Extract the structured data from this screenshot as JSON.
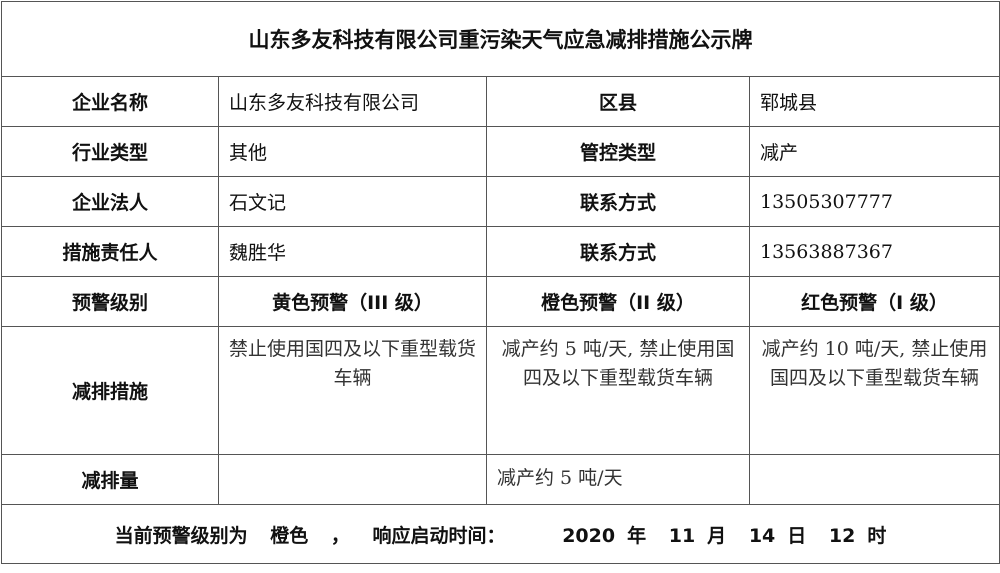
{
  "title": "山东多友科技有限公司重污染天气应急减排措施公示牌",
  "rows": [
    {
      "label1": "企业名称",
      "value1": "山东多友科技有限公司",
      "label2": "区县",
      "value2": "郓城县"
    },
    {
      "label1": "行业类型",
      "value1": "其他",
      "label2": "管控类型",
      "value2": "减产"
    },
    {
      "label1": "企业法人",
      "value1": "石文记",
      "label2": "联系方式",
      "value2": "13505307777"
    },
    {
      "label1": "措施责任人",
      "value1": "魏胜华",
      "label2": "联系方式",
      "value2": "13563887367"
    }
  ],
  "warning": {
    "label": "预警级别",
    "levels": [
      "黄色预警（III 级）",
      "橙色预警（II 级）",
      "红色预警（I 级）"
    ]
  },
  "measures": {
    "label": "减排措施",
    "values": [
      "禁止使用国四及以下重型载货车辆",
      "减产约 5 吨/天, 禁止使用国四及以下重型载货车辆",
      "减产约 10 吨/天, 禁止使用国四及以下重型载货车辆"
    ]
  },
  "reduction": {
    "label": "减排量",
    "values": [
      "",
      "减产约 5 吨/天",
      ""
    ]
  },
  "footer": {
    "prefix": "当前预警级别为",
    "level": "橙色",
    "comma": "，",
    "start_label": "响应启动时间：",
    "year": "2020",
    "year_unit": "年",
    "month": "11",
    "month_unit": "月",
    "day": "14",
    "day_unit": "日",
    "hour": "12",
    "hour_unit": "时"
  }
}
